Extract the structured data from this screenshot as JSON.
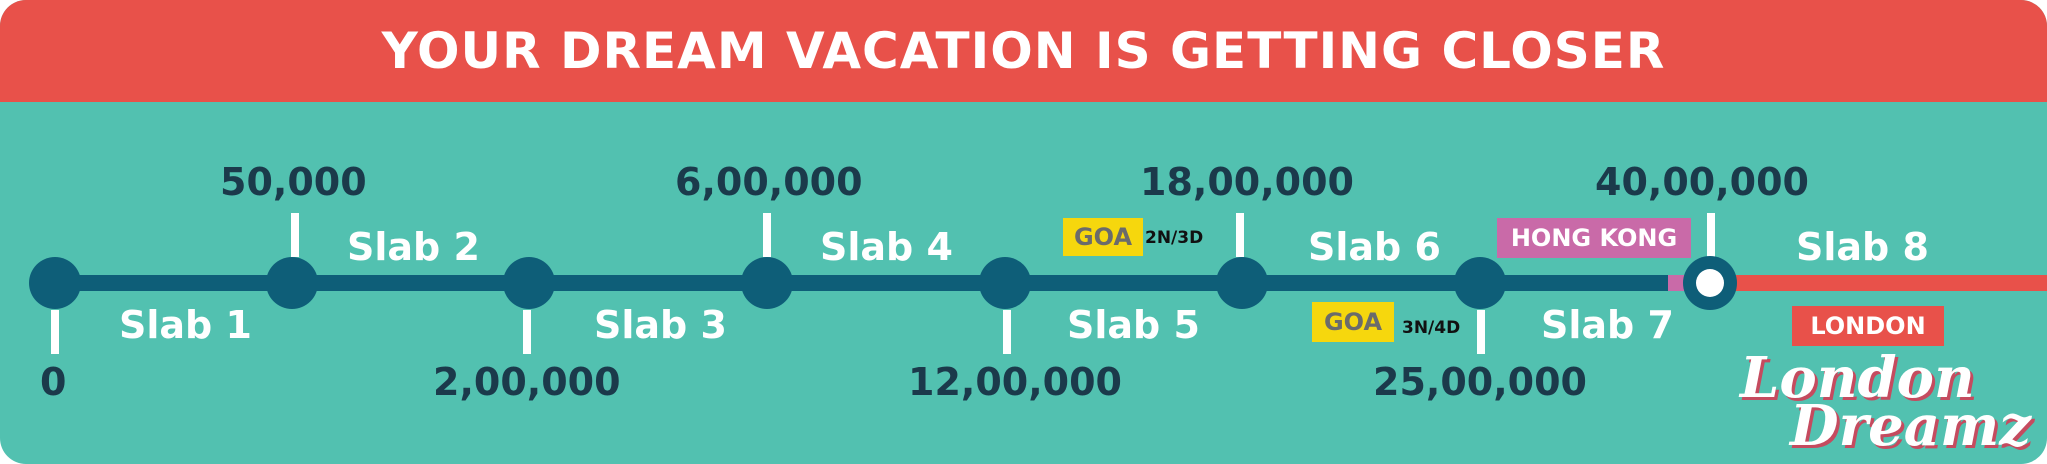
{
  "title": "YOUR DREAM VACATION IS GETTING CLOSER",
  "colors": {
    "header": "#e8514a",
    "background": "#52c1b0",
    "line": "#0e5e78",
    "amount_text": "#1b3a4b",
    "goa_tag": "#f6d70d",
    "hongkong_tag": "#c96aa8",
    "london_tag": "#e8514a"
  },
  "milestones": {
    "m0": "0",
    "m1": "50,000",
    "m2": "2,00,000",
    "m3": "6,00,000",
    "m4": "12,00,000",
    "m5": "18,00,000",
    "m6": "25,00,000",
    "m7": "40,00,000"
  },
  "slabs": {
    "s1": "Slab 1",
    "s2": "Slab 2",
    "s3": "Slab 3",
    "s4": "Slab 4",
    "s5": "Slab 5",
    "s6": "Slab 6",
    "s7": "Slab 7",
    "s8": "Slab 8"
  },
  "rewards": {
    "goa_upper": "GOA",
    "goa_upper_duration": "2N/3D",
    "goa_lower": "GOA",
    "goa_lower_duration": "3N/4D",
    "hong_kong": "HONG KONG",
    "london": "LONDON"
  },
  "brand": {
    "line1": "London",
    "line2": "Dreamz"
  },
  "icons": {
    "current_marker": "ring-marker-icon"
  }
}
